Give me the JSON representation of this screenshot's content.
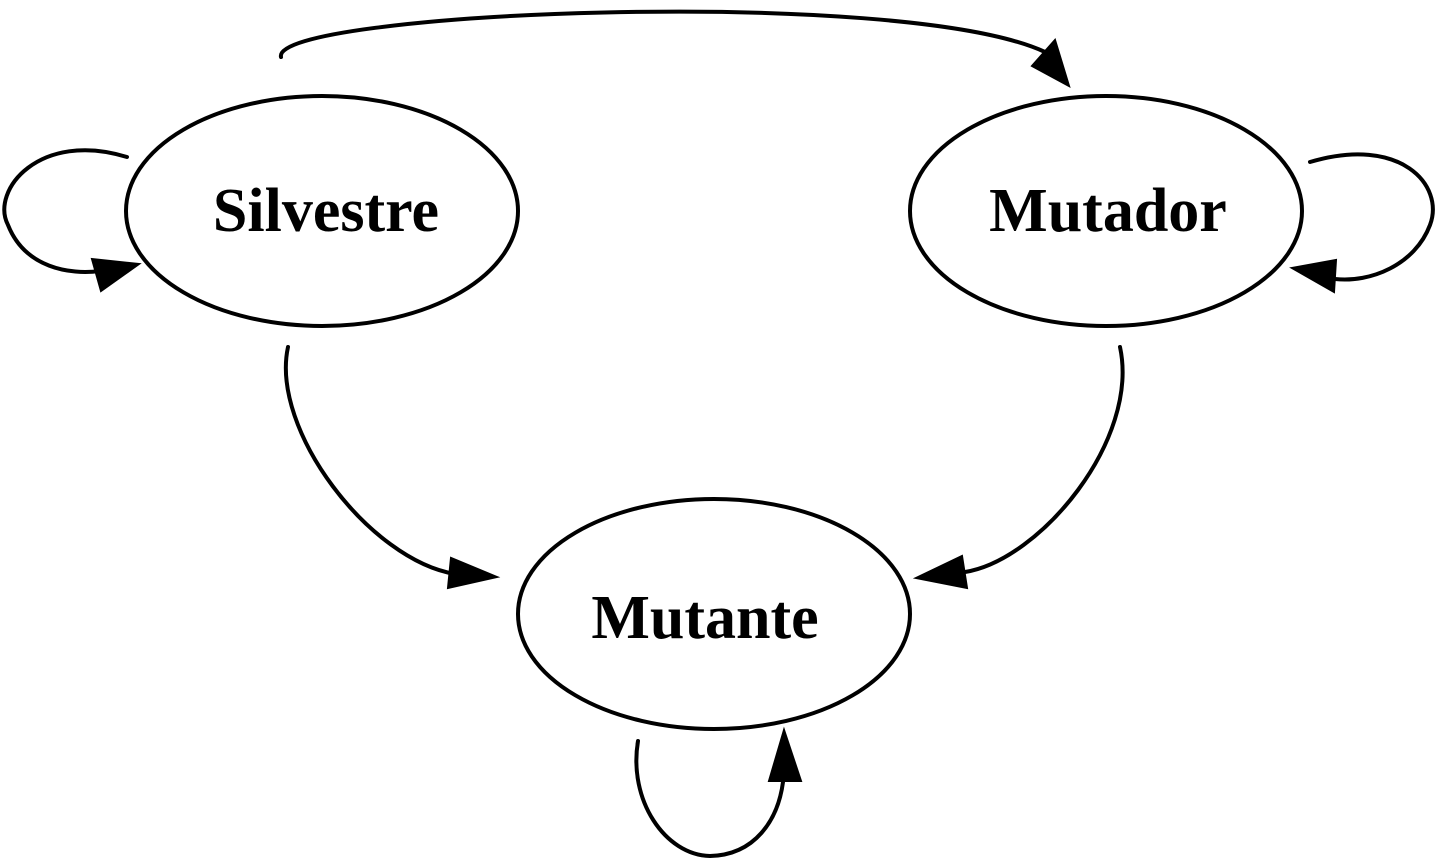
{
  "diagram": {
    "type": "state-transition",
    "nodes": [
      {
        "id": "silvestre",
        "label": "Silvestre"
      },
      {
        "id": "mutador",
        "label": "Mutador"
      },
      {
        "id": "mutante",
        "label": "Mutante"
      }
    ],
    "edges": [
      {
        "from": "silvestre",
        "to": "mutador"
      },
      {
        "from": "silvestre",
        "to": "mutante"
      },
      {
        "from": "mutador",
        "to": "mutante"
      },
      {
        "from": "silvestre",
        "to": "silvestre"
      },
      {
        "from": "mutador",
        "to": "mutador"
      },
      {
        "from": "mutante",
        "to": "mutante"
      }
    ],
    "colors": {
      "stroke": "#000000",
      "background": "#ffffff"
    }
  }
}
